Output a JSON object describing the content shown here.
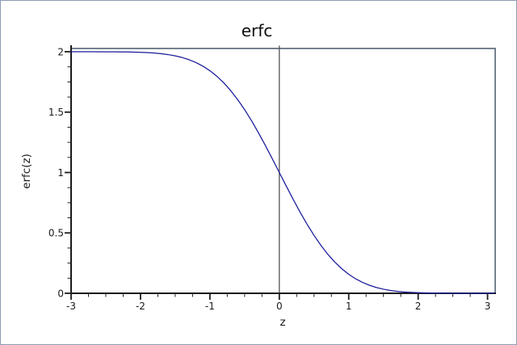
{
  "figure": {
    "background": "#ffffff",
    "border_color": "#8e9cb3"
  },
  "chart_data": {
    "type": "line",
    "title": "erfc",
    "xlabel": "z",
    "ylabel": "erfc(z)",
    "xlim": [
      -3,
      3.11
    ],
    "ylim": [
      0,
      2.027
    ],
    "grid": false,
    "legend": "none",
    "xticks": {
      "values": [
        -3,
        -2,
        -1,
        0,
        1,
        2,
        3
      ],
      "labels": [
        "-3",
        "-2",
        "-1",
        "0",
        "1",
        "2",
        "3"
      ]
    },
    "yticks": {
      "values": [
        0,
        0.5,
        1,
        1.5,
        2
      ],
      "labels": [
        "0",
        "0.5",
        "1",
        "1.5",
        "2"
      ]
    },
    "minor_x_step": 0.25,
    "minor_y_step": 0.125,
    "x_major_step": 1,
    "y_major_step": 0.5,
    "vline_x": 0,
    "colors": {
      "curve": "#191999",
      "frame": "#75818f",
      "axis": "#1c1c1c",
      "vline": "#565656"
    },
    "series": [
      {
        "name": "erfc",
        "x": [
          -3,
          -2.9,
          -2.8,
          -2.7,
          -2.6,
          -2.5,
          -2.4,
          -2.3,
          -2.2,
          -2.1,
          -2,
          -1.9,
          -1.8,
          -1.7,
          -1.6,
          -1.5,
          -1.4,
          -1.3,
          -1.2,
          -1.1,
          -1,
          -0.9,
          -0.8,
          -0.7,
          -0.6,
          -0.5,
          -0.4,
          -0.3,
          -0.2,
          -0.1,
          0,
          0.1,
          0.2,
          0.3,
          0.4,
          0.5,
          0.6,
          0.7,
          0.8,
          0.9,
          1,
          1.1,
          1.2,
          1.3,
          1.4,
          1.5,
          1.6,
          1.7,
          1.8,
          1.9,
          2,
          2.1,
          2.2,
          2.3,
          2.4,
          2.5,
          2.6,
          2.7,
          2.8,
          2.9,
          3,
          3.1
        ],
        "y": [
          1.99998,
          1.99996,
          1.99992,
          1.99987,
          1.99976,
          1.99959,
          1.99931,
          1.99886,
          1.99814,
          1.99702,
          1.99532,
          1.99279,
          1.98909,
          1.98379,
          1.97635,
          1.96611,
          1.95229,
          1.93401,
          1.91031,
          1.88021,
          1.8427,
          1.79691,
          1.7421,
          1.6778,
          1.60386,
          1.5205,
          1.42839,
          1.32863,
          1.2227,
          1.11246,
          1,
          0.88754,
          0.7773,
          0.67137,
          0.57161,
          0.4795,
          0.39614,
          0.3222,
          0.2579,
          0.20309,
          0.1573,
          0.1198,
          0.08969,
          0.06599,
          0.04772,
          0.03389,
          0.02365,
          0.01621,
          0.01091,
          0.00721,
          0.00468,
          0.00298,
          0.00186,
          0.00114,
          0.00069,
          0.00041,
          0.00024,
          0.00013,
          8e-05,
          4e-05,
          2e-05,
          1e-05
        ]
      }
    ]
  }
}
